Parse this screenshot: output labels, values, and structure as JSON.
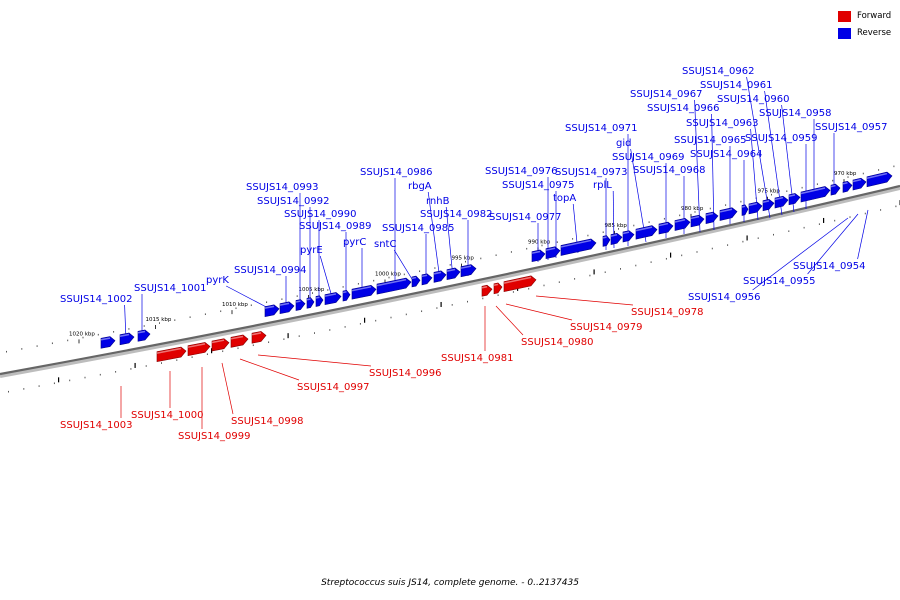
{
  "legend": {
    "forward": {
      "label": "Forward",
      "color": "#e00000"
    },
    "reverse": {
      "label": "Reverse",
      "color": "#0000e6"
    }
  },
  "caption": "Streptococcus suis JS14, complete genome. - 0..2137435",
  "axis": {
    "unit": "kbp",
    "ticks": [
      {
        "kbp": 1020,
        "label": "1020 kbp"
      },
      {
        "kbp": 1015,
        "label": "1015 kbp"
      },
      {
        "kbp": 1010,
        "label": "1010 kbp"
      },
      {
        "kbp": 1005,
        "label": "1005 kbp"
      },
      {
        "kbp": 1000,
        "label": "1000 kbp"
      },
      {
        "kbp": 995,
        "label": "995 kbp"
      },
      {
        "kbp": 990,
        "label": "990 kbp"
      },
      {
        "kbp": 985,
        "label": "985 kbp"
      },
      {
        "kbp": 980,
        "label": "980 kbp"
      },
      {
        "kbp": 975,
        "label": "975 kbp"
      },
      {
        "kbp": 970,
        "label": "970 kbp"
      }
    ]
  },
  "genes": [
    {
      "label": "SSUJS14_1003",
      "strand": "forward"
    },
    {
      "label": "SSUJS14_1002",
      "strand": "reverse"
    },
    {
      "label": "SSUJS14_1001",
      "strand": "reverse"
    },
    {
      "label": "SSUJS14_1000",
      "strand": "forward"
    },
    {
      "label": "SSUJS14_0999",
      "strand": "forward"
    },
    {
      "label": "SSUJS14_0998",
      "strand": "forward"
    },
    {
      "label": "SSUJS14_0997",
      "strand": "forward"
    },
    {
      "label": "SSUJS14_0996",
      "strand": "forward"
    },
    {
      "label": "pyrK",
      "strand": "reverse"
    },
    {
      "label": "SSUJS14_0994",
      "strand": "reverse"
    },
    {
      "label": "SSUJS14_0993",
      "strand": "reverse"
    },
    {
      "label": "SSUJS14_0992",
      "strand": "reverse"
    },
    {
      "label": "SSUJS14_0990",
      "strand": "reverse"
    },
    {
      "label": "pyrE",
      "strand": "reverse"
    },
    {
      "label": "SSUJS14_0989",
      "strand": "reverse"
    },
    {
      "label": "pyrC",
      "strand": "reverse"
    },
    {
      "label": "SSUJS14_0986",
      "strand": "reverse"
    },
    {
      "label": "sntC",
      "strand": "reverse"
    },
    {
      "label": "SSUJS14_0985",
      "strand": "reverse"
    },
    {
      "label": "rbgA",
      "strand": "reverse"
    },
    {
      "label": "rnhB",
      "strand": "reverse"
    },
    {
      "label": "SSUJS14_0982",
      "strand": "reverse"
    },
    {
      "label": "SSUJS14_0981",
      "strand": "forward"
    },
    {
      "label": "SSUJS14_0980",
      "strand": "forward"
    },
    {
      "label": "SSUJS14_0979",
      "strand": "forward"
    },
    {
      "label": "SSUJS14_0978",
      "strand": "forward"
    },
    {
      "label": "SSUJS14_0977",
      "strand": "reverse"
    },
    {
      "label": "SSUJS14_0976",
      "strand": "reverse"
    },
    {
      "label": "SSUJS14_0975",
      "strand": "reverse"
    },
    {
      "label": "topA",
      "strand": "reverse"
    },
    {
      "label": "SSUJS14_0973",
      "strand": "reverse"
    },
    {
      "label": "rplL",
      "strand": "reverse"
    },
    {
      "label": "SSUJS14_0971",
      "strand": "reverse"
    },
    {
      "label": "gid",
      "strand": "reverse"
    },
    {
      "label": "SSUJS14_0969",
      "strand": "reverse"
    },
    {
      "label": "SSUJS14_0968",
      "strand": "reverse"
    },
    {
      "label": "SSUJS14_0967",
      "strand": "reverse"
    },
    {
      "label": "SSUJS14_0966",
      "strand": "reverse"
    },
    {
      "label": "SSUJS14_0965",
      "strand": "reverse"
    },
    {
      "label": "SSUJS14_0964",
      "strand": "reverse"
    },
    {
      "label": "SSUJS14_0963",
      "strand": "reverse"
    },
    {
      "label": "SSUJS14_0962",
      "strand": "reverse"
    },
    {
      "label": "SSUJS14_0961",
      "strand": "reverse"
    },
    {
      "label": "SSUJS14_0960",
      "strand": "reverse"
    },
    {
      "label": "SSUJS14_0959",
      "strand": "reverse"
    },
    {
      "label": "SSUJS14_0958",
      "strand": "reverse"
    },
    {
      "label": "SSUJS14_0957",
      "strand": "reverse"
    },
    {
      "label": "SSUJS14_0956",
      "strand": "reverse"
    },
    {
      "label": "SSUJS14_0955",
      "strand": "reverse"
    },
    {
      "label": "SSUJS14_0954",
      "strand": "reverse"
    }
  ]
}
